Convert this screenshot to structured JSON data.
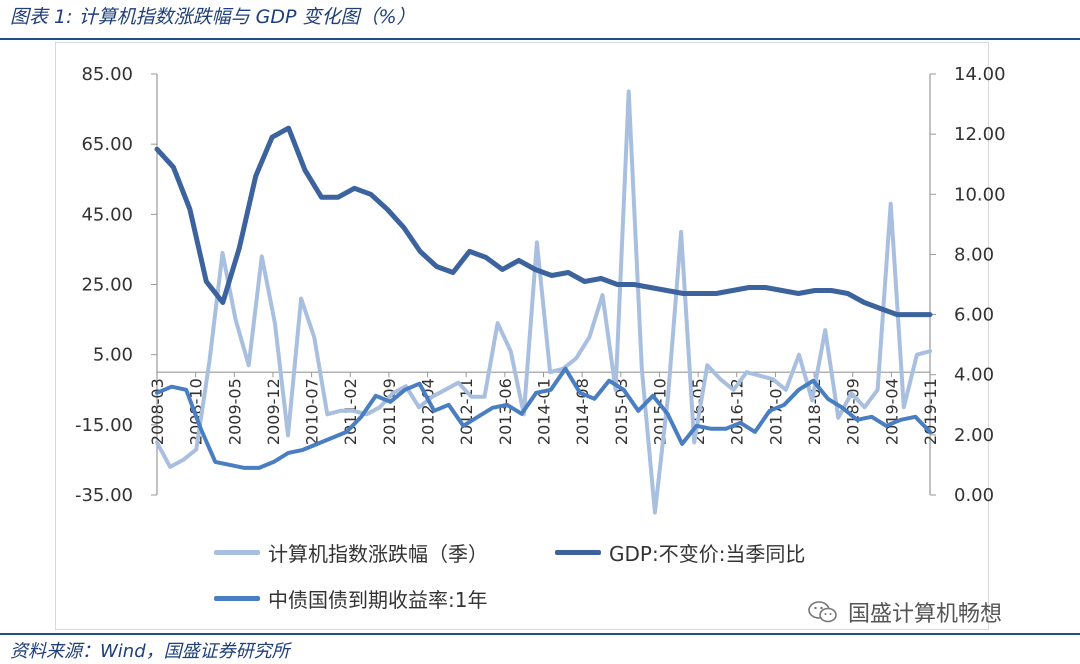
{
  "figure": {
    "title": "图表 1:  计算机指数涨跌幅与 GDP 变化图（%）",
    "source": "资料来源：Wind，国盛证券研究所",
    "watermark": "国盛计算机畅想"
  },
  "colors": {
    "index_series": "#a9bfe0",
    "gdp_series": "#3c639e",
    "bond_series": "#4a7ec2",
    "axis": "#999999",
    "tick_text": "#333333",
    "rule": "#1f4e8c"
  },
  "chart_data": {
    "type": "line",
    "title": "",
    "xlabel": "",
    "ylabel": "",
    "y_left": {
      "ylim": [
        -35,
        85
      ],
      "ticks": [
        85,
        65,
        45,
        25,
        5,
        -15,
        -35
      ],
      "tick_labels": [
        "85.00",
        "65.00",
        "45.00",
        "25.00",
        "5.00",
        "-15.00",
        "-35.00"
      ]
    },
    "y_right": {
      "ylim": [
        0,
        14
      ],
      "ticks": [
        14,
        12,
        10,
        8,
        6,
        4,
        2,
        0
      ],
      "tick_labels": [
        "14.00",
        "12.00",
        "10.00",
        "8.00",
        "6.00",
        "4.00",
        "2.00",
        "0.00"
      ]
    },
    "x_tick_labels": [
      "2008-03",
      "2008-10",
      "2009-05",
      "2009-12",
      "2010-07",
      "2011-02",
      "2011-09",
      "2012-04",
      "2012-11",
      "2013-06",
      "2014-01",
      "2014-08",
      "2015-03",
      "2015-10",
      "2016-05",
      "2016-12",
      "2017-07",
      "2018-02",
      "2018-09",
      "2019-04",
      "2019-11"
    ],
    "grid": false,
    "legend_placement": "bottom",
    "series": [
      {
        "name": "计算机指数涨跌幅（季）",
        "axis": "left",
        "values": [
          -20,
          -27,
          -25,
          -22,
          3,
          34,
          15,
          2,
          33,
          14,
          -18,
          21,
          10,
          -12,
          -11,
          -11,
          -12,
          -10,
          -6,
          -4,
          -10,
          -7,
          -5,
          -3,
          -7,
          -7,
          14,
          6,
          -12,
          37,
          0,
          1,
          4,
          10,
          22,
          -5,
          80,
          1,
          -40,
          -7,
          40,
          -20,
          2,
          -2,
          -5,
          0,
          -1,
          -2,
          -5,
          5,
          -8,
          12,
          -13,
          -6,
          -10,
          -5,
          48,
          -10,
          5,
          6
        ]
      },
      {
        "name": "GDP:不变价:当季同比",
        "axis": "right",
        "values": [
          11.5,
          10.9,
          9.5,
          7.1,
          6.4,
          8.2,
          10.6,
          11.9,
          12.2,
          10.8,
          9.9,
          9.9,
          10.2,
          10.0,
          9.5,
          8.9,
          8.1,
          7.6,
          7.4,
          8.1,
          7.9,
          7.5,
          7.8,
          7.5,
          7.3,
          7.4,
          7.1,
          7.2,
          7.0,
          7.0,
          6.9,
          6.8,
          6.7,
          6.7,
          6.7,
          6.8,
          6.9,
          6.9,
          6.8,
          6.7,
          6.8,
          6.8,
          6.7,
          6.4,
          6.2,
          6.0,
          6.0,
          6.0
        ]
      },
      {
        "name": "中债国债到期收益率:1年",
        "axis": "right",
        "values": [
          3.4,
          3.6,
          3.5,
          2.2,
          1.1,
          1.0,
          0.9,
          0.9,
          1.1,
          1.4,
          1.5,
          1.7,
          1.9,
          2.1,
          2.6,
          3.3,
          3.1,
          3.5,
          3.7,
          2.8,
          3.0,
          2.3,
          2.6,
          2.9,
          3.0,
          2.7,
          3.4,
          3.5,
          4.2,
          3.4,
          3.2,
          3.8,
          3.5,
          2.8,
          3.3,
          2.7,
          1.7,
          2.3,
          2.2,
          2.2,
          2.4,
          2.1,
          2.8,
          3.0,
          3.5,
          3.8,
          3.2,
          2.9,
          2.5,
          2.6,
          2.3,
          2.5,
          2.6,
          2.1
        ]
      }
    ]
  }
}
